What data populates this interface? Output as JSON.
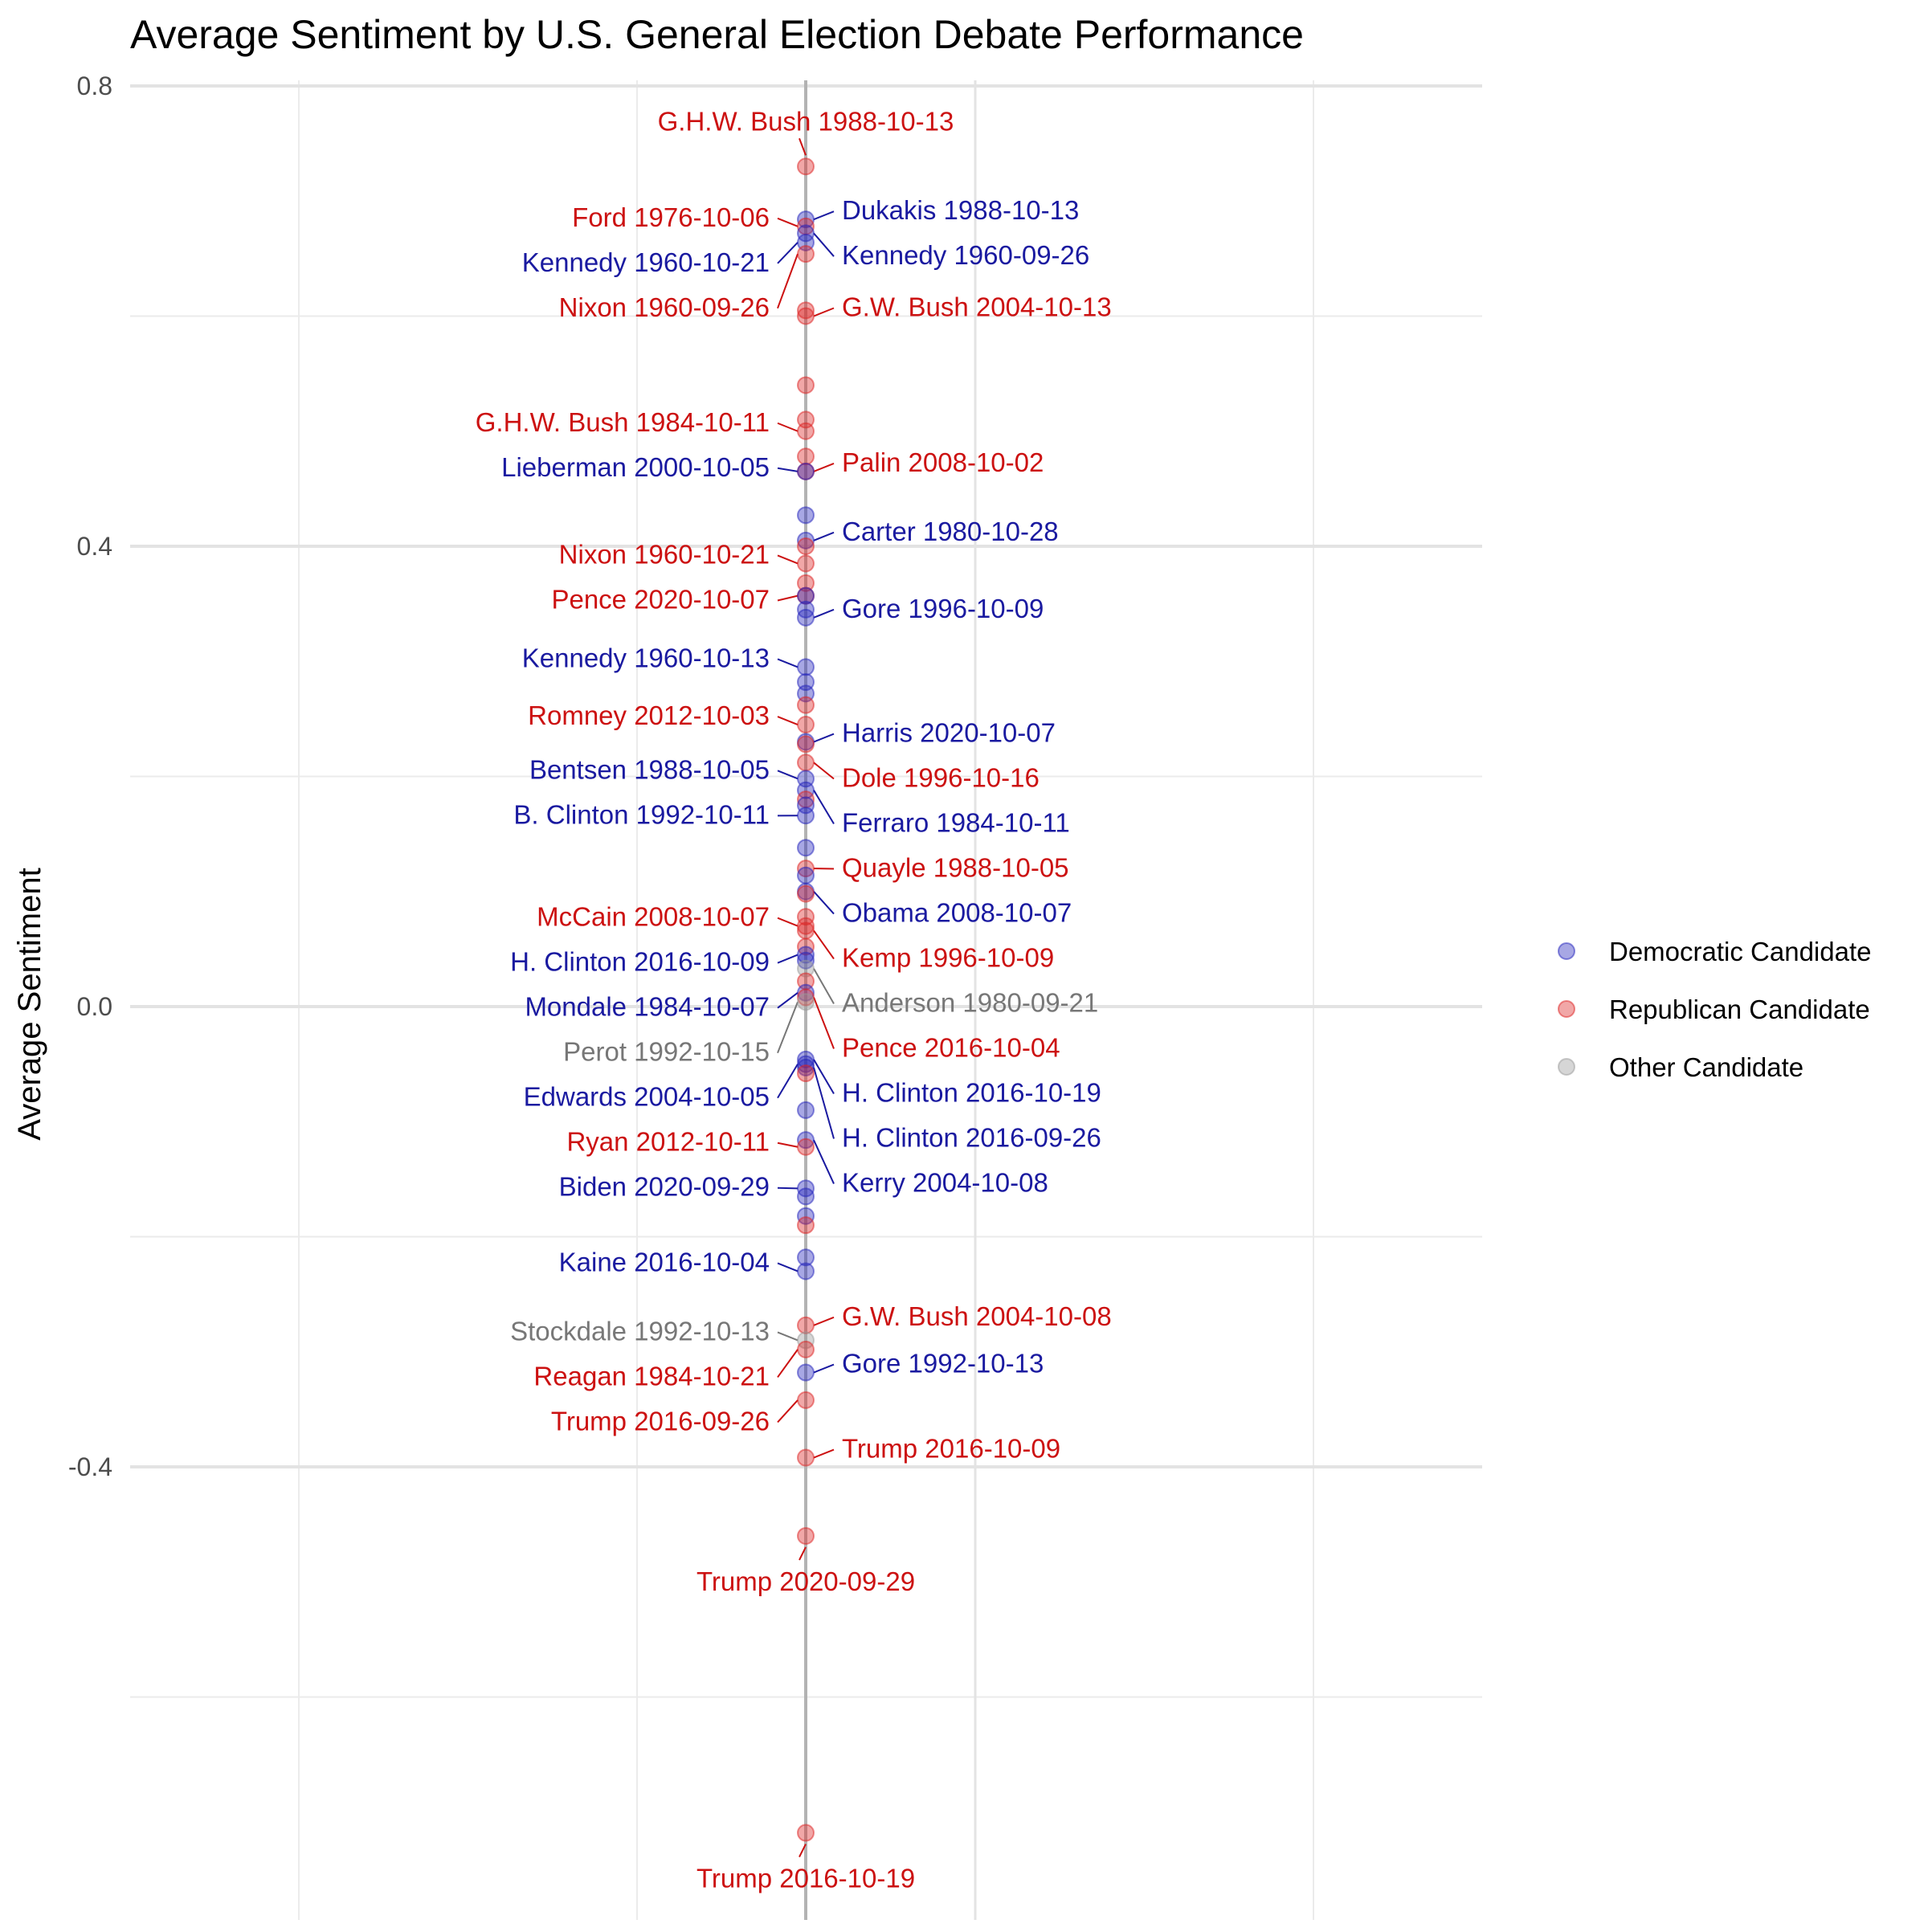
{
  "chart_data": {
    "type": "scatter",
    "title": "Average Sentiment by U.S. General Election Debate Performance",
    "xlabel": "",
    "ylabel": "Average Sentiment",
    "ylim": [
      -0.8,
      0.8
    ],
    "y_ticks": [
      0.8,
      0.4,
      0.0,
      -0.4
    ],
    "y_tick_labels": [
      "0.8",
      "0.4",
      "0.0",
      "-0.4"
    ],
    "grid": true,
    "legend_position": "right",
    "colors": {
      "Democratic Candidate": "#2222bb",
      "Republican Candidate": "#dd2222",
      "Other Candidate": "#999999",
      "label_Democratic Candidate": "#1a1aa0",
      "label_Republican Candidate": "#cc1111",
      "label_Other Candidate": "#777777"
    },
    "legend": [
      {
        "name": "Democratic Candidate"
      },
      {
        "name": "Republican Candidate"
      },
      {
        "name": "Other Candidate"
      }
    ],
    "points": [
      {
        "party": "Republican Candidate",
        "y": 0.73,
        "label": "G.H.W. Bush 1988-10-13",
        "side": "top"
      },
      {
        "party": "Democratic Candidate",
        "y": 0.684,
        "label": "Dukakis 1988-10-13",
        "side": "right"
      },
      {
        "party": "Republican Candidate",
        "y": 0.678,
        "label": "Ford 1976-10-06",
        "side": "left"
      },
      {
        "party": "Democratic Candidate",
        "y": 0.664,
        "label": "Kennedy 1960-10-21",
        "side": "left"
      },
      {
        "party": "Republican Candidate",
        "y": 0.654,
        "label": "Nixon 1960-09-26",
        "side": "left"
      },
      {
        "party": "Democratic Candidate",
        "y": 0.672,
        "label": "Kennedy 1960-09-26",
        "side": "right"
      },
      {
        "party": "Republican Candidate",
        "y": 0.605,
        "label": "",
        "side": "none"
      },
      {
        "party": "Republican Candidate",
        "y": 0.6,
        "label": "G.W. Bush 2004-10-13",
        "side": "right"
      },
      {
        "party": "Republican Candidate",
        "y": 0.54,
        "label": "",
        "side": "none"
      },
      {
        "party": "Republican Candidate",
        "y": 0.51,
        "label": "",
        "side": "none"
      },
      {
        "party": "Republican Candidate",
        "y": 0.5,
        "label": "G.H.W. Bush 1984-10-11",
        "side": "left"
      },
      {
        "party": "Republican Candidate",
        "y": 0.478,
        "label": "",
        "side": "none"
      },
      {
        "party": "Republican Candidate",
        "y": 0.465,
        "label": "Palin 2008-10-02",
        "side": "right"
      },
      {
        "party": "Democratic Candidate",
        "y": 0.465,
        "label": "Lieberman 2000-10-05",
        "side": "left"
      },
      {
        "party": "Democratic Candidate",
        "y": 0.427,
        "label": "",
        "side": "none"
      },
      {
        "party": "Democratic Candidate",
        "y": 0.405,
        "label": "Carter 1980-10-28",
        "side": "right"
      },
      {
        "party": "Republican Candidate",
        "y": 0.4,
        "label": "",
        "side": "none"
      },
      {
        "party": "Republican Candidate",
        "y": 0.385,
        "label": "Nixon 1960-10-21",
        "side": "left"
      },
      {
        "party": "Republican Candidate",
        "y": 0.368,
        "label": "",
        "side": "none"
      },
      {
        "party": "Republican Candidate",
        "y": 0.357,
        "label": "Pence 2020-10-07",
        "side": "left"
      },
      {
        "party": "Democratic Candidate",
        "y": 0.357,
        "label": "",
        "side": "none"
      },
      {
        "party": "Democratic Candidate",
        "y": 0.345,
        "label": "",
        "side": "none"
      },
      {
        "party": "Democratic Candidate",
        "y": 0.338,
        "label": "Gore 1996-10-09",
        "side": "right"
      },
      {
        "party": "Democratic Candidate",
        "y": 0.295,
        "label": "Kennedy 1960-10-13",
        "side": "left"
      },
      {
        "party": "Democratic Candidate",
        "y": 0.282,
        "label": "",
        "side": "none"
      },
      {
        "party": "Democratic Candidate",
        "y": 0.272,
        "label": "",
        "side": "none"
      },
      {
        "party": "Republican Candidate",
        "y": 0.262,
        "label": "",
        "side": "none"
      },
      {
        "party": "Republican Candidate",
        "y": 0.245,
        "label": "Romney 2012-10-03",
        "side": "left"
      },
      {
        "party": "Democratic Candidate",
        "y": 0.23,
        "label": "Harris 2020-10-07",
        "side": "right"
      },
      {
        "party": "Republican Candidate",
        "y": 0.228,
        "label": "",
        "side": "none"
      },
      {
        "party": "Republican Candidate",
        "y": 0.212,
        "label": "Dole 1996-10-16",
        "side": "right"
      },
      {
        "party": "Democratic Candidate",
        "y": 0.198,
        "label": "Bentsen 1988-10-05",
        "side": "left"
      },
      {
        "party": "Democratic Candidate",
        "y": 0.188,
        "label": "Ferraro 1984-10-11",
        "side": "right"
      },
      {
        "party": "Republican Candidate",
        "y": 0.18,
        "label": "",
        "side": "none"
      },
      {
        "party": "Democratic Candidate",
        "y": 0.175,
        "label": "",
        "side": "none"
      },
      {
        "party": "Democratic Candidate",
        "y": 0.166,
        "label": "B. Clinton 1992-10-11",
        "side": "left"
      },
      {
        "party": "Democratic Candidate",
        "y": 0.138,
        "label": "",
        "side": "none"
      },
      {
        "party": "Republican Candidate",
        "y": 0.12,
        "label": "Quayle 1988-10-05",
        "side": "right"
      },
      {
        "party": "Democratic Candidate",
        "y": 0.114,
        "label": "",
        "side": "none"
      },
      {
        "party": "Democratic Candidate",
        "y": 0.1,
        "label": "Obama 2008-10-07",
        "side": "right"
      },
      {
        "party": "Republican Candidate",
        "y": 0.098,
        "label": "",
        "side": "none"
      },
      {
        "party": "Republican Candidate",
        "y": 0.078,
        "label": "",
        "side": "none"
      },
      {
        "party": "Republican Candidate",
        "y": 0.07,
        "label": "McCain 2008-10-07",
        "side": "left"
      },
      {
        "party": "Republican Candidate",
        "y": 0.066,
        "label": "Kemp 1996-10-09",
        "side": "right"
      },
      {
        "party": "Republican Candidate",
        "y": 0.052,
        "label": "",
        "side": "none"
      },
      {
        "party": "Democratic Candidate",
        "y": 0.045,
        "label": "H. Clinton 2016-10-09",
        "side": "left"
      },
      {
        "party": "Democratic Candidate",
        "y": 0.04,
        "label": "",
        "side": "none"
      },
      {
        "party": "Other Candidate",
        "y": 0.033,
        "label": "Anderson 1980-09-21",
        "side": "right"
      },
      {
        "party": "Republican Candidate",
        "y": 0.022,
        "label": "",
        "side": "none"
      },
      {
        "party": "Democratic Candidate",
        "y": 0.012,
        "label": "Mondale 1984-10-07",
        "side": "left"
      },
      {
        "party": "Republican Candidate",
        "y": 0.008,
        "label": "Pence 2016-10-04",
        "side": "right"
      },
      {
        "party": "Other Candidate",
        "y": 0.004,
        "label": "Perot 1992-10-15",
        "side": "left"
      },
      {
        "party": "Democratic Candidate",
        "y": -0.046,
        "label": "H. Clinton 2016-10-19",
        "side": "right"
      },
      {
        "party": "Democratic Candidate",
        "y": -0.05,
        "label": "Edwards 2004-10-05",
        "side": "left"
      },
      {
        "party": "Democratic Candidate",
        "y": -0.053,
        "label": "H. Clinton 2016-09-26",
        "side": "right"
      },
      {
        "party": "Republican Candidate",
        "y": -0.058,
        "label": "",
        "side": "none"
      },
      {
        "party": "Democratic Candidate",
        "y": -0.09,
        "label": "",
        "side": "none"
      },
      {
        "party": "Democratic Candidate",
        "y": -0.116,
        "label": "Kerry 2004-10-08",
        "side": "right"
      },
      {
        "party": "Republican Candidate",
        "y": -0.122,
        "label": "Ryan 2012-10-11",
        "side": "left"
      },
      {
        "party": "Democratic Candidate",
        "y": -0.158,
        "label": "Biden 2020-09-29",
        "side": "left"
      },
      {
        "party": "Democratic Candidate",
        "y": -0.165,
        "label": "",
        "side": "none"
      },
      {
        "party": "Democratic Candidate",
        "y": -0.182,
        "label": "",
        "side": "none"
      },
      {
        "party": "Republican Candidate",
        "y": -0.19,
        "label": "",
        "side": "none"
      },
      {
        "party": "Democratic Candidate",
        "y": -0.218,
        "label": "",
        "side": "none"
      },
      {
        "party": "Democratic Candidate",
        "y": -0.23,
        "label": "Kaine 2016-10-04",
        "side": "left"
      },
      {
        "party": "Republican Candidate",
        "y": -0.277,
        "label": "G.W. Bush 2004-10-08",
        "side": "right"
      },
      {
        "party": "Other Candidate",
        "y": -0.29,
        "label": "Stockdale 1992-10-13",
        "side": "left"
      },
      {
        "party": "Republican Candidate",
        "y": -0.298,
        "label": "Reagan 1984-10-21",
        "side": "left"
      },
      {
        "party": "Democratic Candidate",
        "y": -0.318,
        "label": "Gore 1992-10-13",
        "side": "right"
      },
      {
        "party": "Republican Candidate",
        "y": -0.342,
        "label": "Trump 2016-09-26",
        "side": "left"
      },
      {
        "party": "Republican Candidate",
        "y": -0.392,
        "label": "Trump 2016-10-09",
        "side": "right"
      },
      {
        "party": "Republican Candidate",
        "y": -0.46,
        "label": "Trump 2020-09-29",
        "side": "bottom"
      },
      {
        "party": "Republican Candidate",
        "y": -0.718,
        "label": "Trump 2016-10-19",
        "side": "bottom"
      }
    ]
  }
}
